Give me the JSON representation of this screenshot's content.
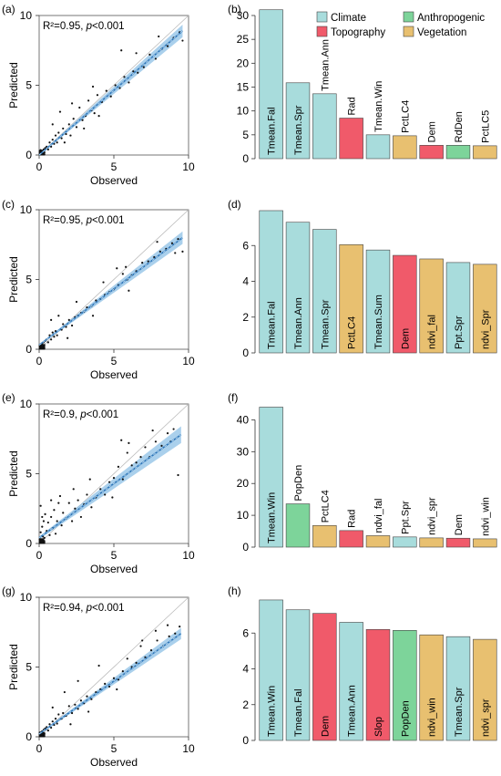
{
  "colors": {
    "Climate": "#a8dcdc",
    "Topography": "#f05a6a",
    "Anthropogenic": "#7dd49a",
    "Vegetation": "#e8c070",
    "fit_line": "#2a74b8",
    "ci_band": "#8ec0e6"
  },
  "legend": {
    "entries": [
      {
        "group": "Climate",
        "label": "Climate"
      },
      {
        "group": "Anthropogenic",
        "label": "Anthropogenic"
      },
      {
        "group": "Topography",
        "label": "Topography"
      },
      {
        "group": "Vegetation",
        "label": "Vegetation"
      }
    ]
  },
  "chart_data": [
    {
      "id": "a",
      "panel_label": "(a)",
      "type": "scatter",
      "xlabel": "Observed",
      "ylabel": "Predicted",
      "xlim": [
        0,
        10
      ],
      "ylim": [
        0,
        10
      ],
      "xticks": [
        0,
        5,
        10
      ],
      "yticks": [
        0,
        5,
        10
      ],
      "annotation": {
        "r2": "R²=0.95, ",
        "p": "p",
        "p_rest": "<0.001"
      },
      "fit": {
        "x": [
          0,
          9.6
        ],
        "y": [
          0,
          8.9
        ],
        "ci": [
          0.05,
          0.45
        ]
      },
      "points": [
        [
          0.05,
          0.1
        ],
        [
          0.1,
          0.2
        ],
        [
          0.15,
          0.05
        ],
        [
          0.2,
          0.3
        ],
        [
          0.25,
          0.15
        ],
        [
          0.3,
          0.4
        ],
        [
          0.35,
          0.2
        ],
        [
          0.4,
          0.5
        ],
        [
          0.1,
          0.35
        ],
        [
          0.2,
          0.1
        ],
        [
          0.5,
          0.6
        ],
        [
          0.6,
          0.4
        ],
        [
          0.7,
          0.9
        ],
        [
          0.8,
          0.6
        ],
        [
          0.9,
          1.1
        ],
        [
          1.0,
          0.8
        ],
        [
          1.1,
          1.4
        ],
        [
          1.2,
          0.9
        ],
        [
          1.3,
          1.6
        ],
        [
          1.5,
          1.2
        ],
        [
          1.6,
          1.9
        ],
        [
          1.8,
          1.5
        ],
        [
          2.0,
          2.2
        ],
        [
          2.1,
          1.4
        ],
        [
          2.3,
          2.6
        ],
        [
          2.5,
          2.0
        ],
        [
          2.7,
          3.4
        ],
        [
          2.9,
          2.5
        ],
        [
          3.1,
          2.8
        ],
        [
          3.3,
          3.9
        ],
        [
          3.5,
          3.2
        ],
        [
          3.7,
          3.0
        ],
        [
          3.9,
          4.3
        ],
        [
          4.2,
          3.8
        ],
        [
          4.5,
          4.6
        ],
        [
          4.8,
          4.2
        ],
        [
          5.1,
          5.0
        ],
        [
          5.4,
          4.8
        ],
        [
          5.7,
          5.6
        ],
        [
          6.0,
          5.2
        ],
        [
          6.3,
          6.0
        ],
        [
          6.6,
          5.9
        ],
        [
          7.0,
          6.3
        ],
        [
          7.4,
          7.2
        ],
        [
          7.8,
          6.9
        ],
        [
          8.2,
          7.6
        ],
        [
          8.6,
          7.8
        ],
        [
          9.0,
          8.4
        ],
        [
          9.4,
          8.8
        ],
        [
          9.6,
          8.2
        ],
        [
          1.4,
          3.1
        ],
        [
          2.2,
          3.7
        ],
        [
          3.6,
          4.9
        ],
        [
          4.0,
          2.8
        ],
        [
          5.5,
          7.5
        ],
        [
          6.5,
          7.3
        ],
        [
          8.0,
          8.5
        ],
        [
          0.9,
          2.2
        ],
        [
          1.7,
          0.9
        ],
        [
          3.0,
          1.9
        ]
      ]
    },
    {
      "id": "b",
      "panel_label": "(b)",
      "type": "bar",
      "ylim": [
        0,
        30
      ],
      "yticks": [
        0,
        5,
        10,
        15,
        20,
        25,
        30
      ],
      "categories": [
        "Tmean.Fal",
        "Tmean.Spr",
        "Tmean.Ann",
        "Rad",
        "Tmean.Win",
        "PctLC4",
        "Dem",
        "RdDen",
        "PctLC5"
      ],
      "values": [
        31.2,
        15.9,
        13.6,
        8.5,
        5.0,
        4.8,
        2.8,
        2.8,
        2.7
      ],
      "groups": [
        "Climate",
        "Climate",
        "Climate",
        "Topography",
        "Climate",
        "Vegetation",
        "Topography",
        "Anthropogenic",
        "Vegetation"
      ]
    },
    {
      "id": "c",
      "panel_label": "(c)",
      "type": "scatter",
      "xlabel": "Observed",
      "ylabel": "Predicted",
      "xlim": [
        0,
        10
      ],
      "ylim": [
        0,
        10
      ],
      "xticks": [
        0,
        5,
        10
      ],
      "yticks": [
        0,
        5,
        10
      ],
      "annotation": {
        "r2": "R²=0.95, ",
        "p": "p",
        "p_rest": "<0.001"
      },
      "fit": {
        "x": [
          0,
          9.6
        ],
        "y": [
          0.3,
          8.0
        ],
        "ci": [
          0.05,
          0.45
        ]
      },
      "points": [
        [
          0.05,
          0.2
        ],
        [
          0.1,
          0.35
        ],
        [
          0.15,
          0.1
        ],
        [
          0.2,
          0.4
        ],
        [
          0.25,
          0.25
        ],
        [
          0.3,
          0.5
        ],
        [
          0.35,
          0.3
        ],
        [
          0.4,
          0.6
        ],
        [
          0.1,
          0.05
        ],
        [
          0.2,
          0.15
        ],
        [
          0.5,
          0.7
        ],
        [
          0.6,
          0.5
        ],
        [
          0.7,
          1.0
        ],
        [
          0.8,
          0.7
        ],
        [
          0.9,
          1.2
        ],
        [
          1.0,
          0.9
        ],
        [
          1.1,
          1.3
        ],
        [
          1.2,
          1.0
        ],
        [
          1.3,
          2.4
        ],
        [
          1.5,
          1.4
        ],
        [
          1.6,
          1.8
        ],
        [
          1.8,
          1.6
        ],
        [
          2.0,
          2.1
        ],
        [
          2.2,
          1.7
        ],
        [
          2.4,
          2.3
        ],
        [
          2.6,
          2.4
        ],
        [
          2.8,
          2.6
        ],
        [
          3.0,
          2.7
        ],
        [
          3.2,
          3.0
        ],
        [
          3.5,
          3.1
        ],
        [
          3.8,
          3.5
        ],
        [
          4.1,
          3.6
        ],
        [
          4.4,
          3.9
        ],
        [
          4.7,
          4.1
        ],
        [
          5.0,
          4.3
        ],
        [
          5.3,
          4.6
        ],
        [
          5.6,
          5.4
        ],
        [
          5.9,
          5.0
        ],
        [
          6.2,
          5.3
        ],
        [
          6.5,
          5.6
        ],
        [
          6.9,
          6.2
        ],
        [
          7.3,
          6.3
        ],
        [
          7.7,
          6.6
        ],
        [
          8.1,
          7.0
        ],
        [
          8.5,
          7.2
        ],
        [
          8.9,
          7.6
        ],
        [
          9.3,
          7.9
        ],
        [
          9.6,
          7.0
        ],
        [
          2.5,
          3.4
        ],
        [
          3.6,
          2.4
        ],
        [
          5.2,
          5.8
        ],
        [
          5.8,
          5.9
        ],
        [
          6.0,
          4.2
        ],
        [
          1.9,
          0.8
        ],
        [
          0.8,
          2.1
        ],
        [
          4.3,
          4.8
        ],
        [
          7.9,
          7.7
        ],
        [
          9.1,
          6.9
        ]
      ]
    },
    {
      "id": "d",
      "panel_label": "(d)",
      "type": "bar",
      "ylim": [
        0,
        8
      ],
      "yticks": [
        0,
        2,
        4,
        6
      ],
      "categories": [
        "Tmean.Fal",
        "Tmean.Ann",
        "Tmean.Spr",
        "PctLC4",
        "Tmean.Sum",
        "Dem",
        "ndvi_fal",
        "Ppt.Spr",
        "ndvi_Spr"
      ],
      "values": [
        7.95,
        7.3,
        6.9,
        6.05,
        5.75,
        5.45,
        5.25,
        5.05,
        4.95
      ],
      "groups": [
        "Climate",
        "Climate",
        "Climate",
        "Vegetation",
        "Climate",
        "Topography",
        "Vegetation",
        "Climate",
        "Vegetation"
      ]
    },
    {
      "id": "e",
      "panel_label": "(e)",
      "type": "scatter",
      "xlabel": "Observed",
      "ylabel": "Predicted",
      "xlim": [
        0,
        10
      ],
      "ylim": [
        0,
        10
      ],
      "xticks": [
        0,
        5,
        10
      ],
      "yticks": [
        0,
        5,
        10
      ],
      "annotation": {
        "r2": "R²=0.9, ",
        "p": "p",
        "p_rest": "<0.001"
      },
      "fit": {
        "x": [
          0,
          9.5
        ],
        "y": [
          0.4,
          7.8
        ],
        "ci": [
          0.1,
          0.6
        ]
      },
      "points": [
        [
          0.05,
          0.3
        ],
        [
          0.1,
          0.8
        ],
        [
          0.15,
          0.2
        ],
        [
          0.2,
          1.2
        ],
        [
          0.25,
          0.5
        ],
        [
          0.3,
          1.6
        ],
        [
          0.35,
          0.4
        ],
        [
          0.4,
          2.1
        ],
        [
          0.1,
          2.7
        ],
        [
          0.2,
          1.9
        ],
        [
          0.3,
          0.1
        ],
        [
          0.5,
          0.9
        ],
        [
          0.6,
          1.5
        ],
        [
          0.7,
          0.6
        ],
        [
          0.8,
          1.9
        ],
        [
          0.9,
          1.1
        ],
        [
          1.0,
          2.4
        ],
        [
          1.1,
          0.7
        ],
        [
          1.2,
          1.6
        ],
        [
          1.3,
          2.9
        ],
        [
          1.5,
          1.3
        ],
        [
          1.6,
          2.2
        ],
        [
          1.8,
          1.8
        ],
        [
          2.0,
          2.9
        ],
        [
          2.2,
          1.6
        ],
        [
          2.4,
          2.5
        ],
        [
          2.6,
          3.1
        ],
        [
          2.8,
          1.9
        ],
        [
          3.0,
          2.8
        ],
        [
          3.2,
          3.5
        ],
        [
          3.5,
          2.6
        ],
        [
          3.8,
          3.3
        ],
        [
          4.1,
          3.9
        ],
        [
          4.4,
          3.5
        ],
        [
          4.7,
          4.4
        ],
        [
          5.0,
          4.7
        ],
        [
          5.3,
          5.5
        ],
        [
          5.6,
          4.6
        ],
        [
          5.9,
          6.5
        ],
        [
          6.2,
          5.6
        ],
        [
          6.5,
          5.8
        ],
        [
          6.8,
          6.2
        ],
        [
          7.1,
          6.9
        ],
        [
          7.4,
          6.2
        ],
        [
          7.8,
          7.3
        ],
        [
          8.2,
          7.0
        ],
        [
          8.6,
          7.9
        ],
        [
          9.0,
          8.2
        ],
        [
          9.3,
          4.9
        ],
        [
          5.5,
          7.4
        ],
        [
          6.0,
          7.2
        ],
        [
          3.4,
          4.6
        ],
        [
          4.9,
          3.3
        ],
        [
          2.3,
          3.9
        ],
        [
          1.4,
          3.4
        ],
        [
          0.8,
          3.1
        ],
        [
          7.6,
          8.1
        ],
        [
          8.8,
          7.3
        ]
      ]
    },
    {
      "id": "f",
      "panel_label": "(f)",
      "type": "bar",
      "ylim": [
        0,
        45
      ],
      "yticks": [
        0,
        10,
        20,
        30,
        40
      ],
      "categories": [
        "Tmean.Win",
        "PopDen",
        "PctLC4",
        "Rad",
        "ndvi_fal",
        "Ppt.Spr",
        "ndvi_spr",
        "Dem",
        "ndvi_win"
      ],
      "values": [
        44.0,
        13.6,
        6.8,
        5.2,
        3.6,
        3.2,
        2.9,
        2.8,
        2.6
      ],
      "groups": [
        "Climate",
        "Anthropogenic",
        "Vegetation",
        "Topography",
        "Vegetation",
        "Climate",
        "Vegetation",
        "Topography",
        "Vegetation"
      ]
    },
    {
      "id": "g",
      "panel_label": "(g)",
      "type": "scatter",
      "xlabel": "Observed",
      "ylabel": "Predicted",
      "xlim": [
        0,
        10
      ],
      "ylim": [
        0,
        10
      ],
      "xticks": [
        0,
        5,
        10
      ],
      "yticks": [
        0,
        5,
        10
      ],
      "annotation": {
        "r2": "R²=0.94, ",
        "p": "p",
        "p_rest": "<0.001"
      },
      "fit": {
        "x": [
          0,
          9.5
        ],
        "y": [
          0.2,
          7.4
        ],
        "ci": [
          0.05,
          0.4
        ]
      },
      "points": [
        [
          0.05,
          0.1
        ],
        [
          0.1,
          0.3
        ],
        [
          0.15,
          0.05
        ],
        [
          0.2,
          0.4
        ],
        [
          0.25,
          0.2
        ],
        [
          0.3,
          0.5
        ],
        [
          0.35,
          0.25
        ],
        [
          0.4,
          0.6
        ],
        [
          0.1,
          0.15
        ],
        [
          0.2,
          0.05
        ],
        [
          0.5,
          0.7
        ],
        [
          0.6,
          0.45
        ],
        [
          0.7,
          0.9
        ],
        [
          0.8,
          0.65
        ],
        [
          0.9,
          1.1
        ],
        [
          1.0,
          0.85
        ],
        [
          1.1,
          1.3
        ],
        [
          1.2,
          0.95
        ],
        [
          1.3,
          1.6
        ],
        [
          1.5,
          1.3
        ],
        [
          1.6,
          1.7
        ],
        [
          1.8,
          1.5
        ],
        [
          2.0,
          2.2
        ],
        [
          2.2,
          1.7
        ],
        [
          2.4,
          2.3
        ],
        [
          2.6,
          2.0
        ],
        [
          2.8,
          2.6
        ],
        [
          3.0,
          2.4
        ],
        [
          3.2,
          2.9
        ],
        [
          3.5,
          2.7
        ],
        [
          3.8,
          3.2
        ],
        [
          4.1,
          3.4
        ],
        [
          4.4,
          3.8
        ],
        [
          4.7,
          3.6
        ],
        [
          5.0,
          4.2
        ],
        [
          5.3,
          4.1
        ],
        [
          5.6,
          4.7
        ],
        [
          5.9,
          5.6
        ],
        [
          6.2,
          5.0
        ],
        [
          6.5,
          5.3
        ],
        [
          6.8,
          6.5
        ],
        [
          7.1,
          5.7
        ],
        [
          7.5,
          6.2
        ],
        [
          7.9,
          6.9
        ],
        [
          8.3,
          6.5
        ],
        [
          8.7,
          7.2
        ],
        [
          9.1,
          7.4
        ],
        [
          9.4,
          7.9
        ],
        [
          1.7,
          3.2
        ],
        [
          2.6,
          4.0
        ],
        [
          4.0,
          5.1
        ],
        [
          5.2,
          3.4
        ],
        [
          6.9,
          6.9
        ],
        [
          3.3,
          1.8
        ],
        [
          0.9,
          2.1
        ],
        [
          7.8,
          7.6
        ],
        [
          8.6,
          8.0
        ],
        [
          2.1,
          0.9
        ]
      ]
    },
    {
      "id": "h",
      "panel_label": "(h)",
      "type": "bar",
      "ylim": [
        0,
        8
      ],
      "yticks": [
        0,
        2,
        4,
        6
      ],
      "categories": [
        "Tmean.Win",
        "Tmean.Fal",
        "Dem",
        "Tmean.Ann",
        "Slop",
        "PopDen",
        "ndvi_win",
        "Tmean.Spr",
        "ndvi_spr"
      ],
      "values": [
        7.85,
        7.3,
        7.1,
        6.6,
        6.2,
        6.15,
        5.9,
        5.8,
        5.65
      ],
      "groups": [
        "Climate",
        "Climate",
        "Topography",
        "Climate",
        "Topography",
        "Anthropogenic",
        "Vegetation",
        "Climate",
        "Vegetation"
      ]
    }
  ]
}
